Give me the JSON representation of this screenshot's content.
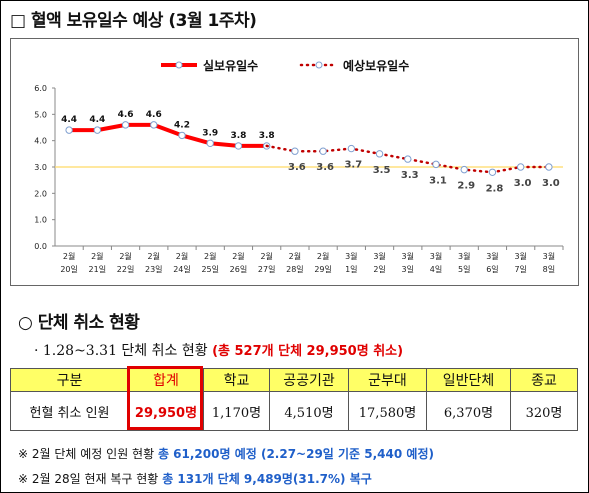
{
  "heading1": "□ 혈액 보유일수 예상 (3월 1주차)",
  "heading2": "○ 단체 취소 현황",
  "subline": {
    "prefix": "· 1.28~3.31 단체 취소 현황",
    "highlight": "(총 527개 단체 29,950명 취소)"
  },
  "table": {
    "headers": [
      "구분",
      "합계",
      "학교",
      "공공기관",
      "군부대",
      "일반단체",
      "종교"
    ],
    "row": [
      "헌혈 취소 인원",
      "29,950명",
      "1,170명",
      "4,510명",
      "17,580명",
      "6,370명",
      "320명"
    ]
  },
  "notes": [
    {
      "prefix": "※ 2월 단체 예정 인원 현황",
      "highlight": "총 61,200명 예정 (2.27~29일 기준 5,440 예정)"
    },
    {
      "prefix": "※ 2월 28일 현재 복구 현황",
      "highlight": "총 131개 단체 9,489명(31.7%) 복구"
    }
  ],
  "colors": {
    "actual": "#ff0000",
    "forecast": "#c00000",
    "marker": "#ffffff",
    "threshold": "#ffd966"
  },
  "chart_data": {
    "type": "line",
    "categories": [
      [
        "2월",
        "20일"
      ],
      [
        "2월",
        "21일"
      ],
      [
        "2월",
        "22일"
      ],
      [
        "2월",
        "23일"
      ],
      [
        "2월",
        "24일"
      ],
      [
        "2월",
        "25일"
      ],
      [
        "2월",
        "26일"
      ],
      [
        "2월",
        "27일"
      ],
      [
        "2월",
        "28일"
      ],
      [
        "2월",
        "29일"
      ],
      [
        "3월",
        "1일"
      ],
      [
        "3월",
        "2일"
      ],
      [
        "3월",
        "3일"
      ],
      [
        "3월",
        "4일"
      ],
      [
        "3월",
        "5일"
      ],
      [
        "3월",
        "6일"
      ],
      [
        "3월",
        "7일"
      ],
      [
        "3월",
        "8일"
      ]
    ],
    "series": [
      {
        "name": "실보유일수",
        "style": "solid",
        "values": [
          4.4,
          4.4,
          4.6,
          4.6,
          4.2,
          3.9,
          3.8,
          3.8,
          null,
          null,
          null,
          null,
          null,
          null,
          null,
          null,
          null,
          null
        ]
      },
      {
        "name": "예상보유일수",
        "style": "dotted",
        "values": [
          null,
          null,
          null,
          null,
          null,
          null,
          null,
          3.8,
          3.6,
          3.6,
          3.7,
          3.5,
          3.3,
          3.1,
          2.9,
          2.8,
          3.0,
          3.0
        ]
      }
    ],
    "ylim": [
      0,
      6
    ],
    "yticks": [
      "0.0",
      "1.0",
      "2.0",
      "3.0",
      "4.0",
      "5.0",
      "6.0"
    ],
    "threshold": 3.0,
    "legend": "top-center"
  }
}
